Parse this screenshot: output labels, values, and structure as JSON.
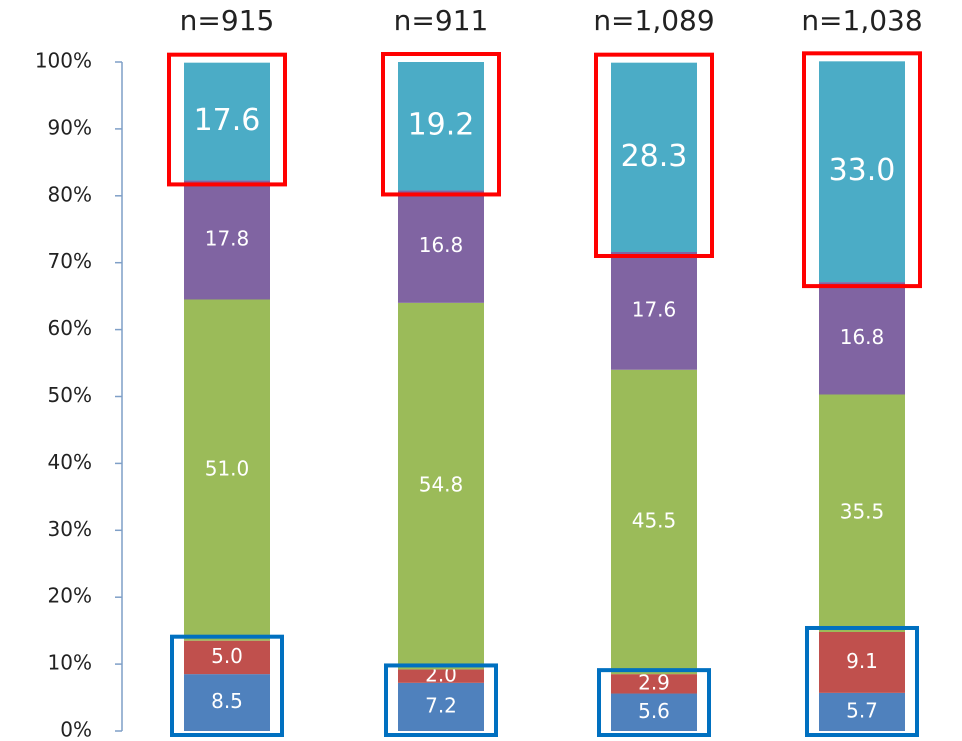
{
  "chart_data": {
    "type": "stacked_bar",
    "categories": [
      "n=915",
      "n=911",
      "n=1,089",
      "n=1,038"
    ],
    "series": [
      {
        "color": "#4f81bd",
        "values": [
          8.5,
          7.2,
          5.6,
          5.7
        ],
        "value_labels": [
          "8.5",
          "7.2",
          "5.6",
          "5.7"
        ]
      },
      {
        "color": "#c0504d",
        "values": [
          5.0,
          2.0,
          2.9,
          9.1
        ],
        "value_labels": [
          "5.0",
          "2.0",
          "2.9",
          "9.1"
        ]
      },
      {
        "color": "#9bbb59",
        "values": [
          51.0,
          54.8,
          45.5,
          35.5
        ],
        "value_labels": [
          "51.0",
          "54.8",
          "45.5",
          "35.5"
        ]
      },
      {
        "color": "#8064a2",
        "values": [
          17.8,
          16.8,
          17.6,
          16.8
        ],
        "value_labels": [
          "17.8",
          "16.8",
          "17.6",
          "16.8"
        ]
      },
      {
        "color": "#4bacc6",
        "values": [
          17.6,
          19.2,
          28.3,
          33.0
        ],
        "value_labels": [
          "17.6",
          "19.2",
          "28.3",
          "33.0"
        ]
      }
    ],
    "ylim": [
      0,
      100
    ],
    "yticks": [
      {
        "value": 0,
        "label": "0%"
      },
      {
        "value": 10,
        "label": "10%"
      },
      {
        "value": 20,
        "label": "20%"
      },
      {
        "value": 30,
        "label": "30%"
      },
      {
        "value": 40,
        "label": "40%"
      },
      {
        "value": 50,
        "label": "50%"
      },
      {
        "value": 60,
        "label": "60%"
      },
      {
        "value": 70,
        "label": "70%"
      },
      {
        "value": 80,
        "label": "80%"
      },
      {
        "value": 90,
        "label": "90%"
      },
      {
        "value": 100,
        "label": "100%"
      }
    ]
  }
}
